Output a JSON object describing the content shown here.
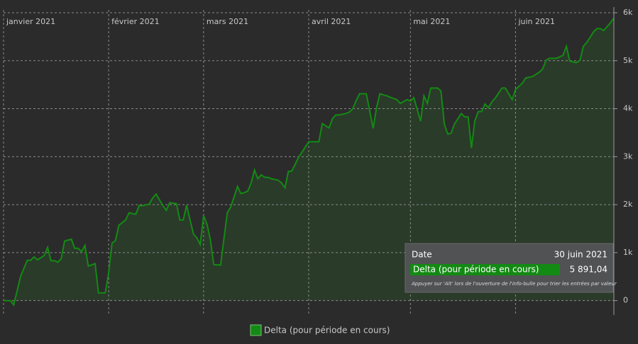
{
  "chart_data": {
    "type": "area",
    "x": [
      "2021-01-01",
      "2021-01-03",
      "2021-01-04",
      "2021-01-05",
      "2021-01-06",
      "2021-01-08",
      "2021-01-09",
      "2021-01-10",
      "2021-01-11",
      "2021-01-13",
      "2021-01-14",
      "2021-01-15",
      "2021-01-16",
      "2021-01-17",
      "2021-01-18",
      "2021-01-19",
      "2021-01-21",
      "2021-01-22",
      "2021-01-23",
      "2021-01-24",
      "2021-01-25",
      "2021-01-26",
      "2021-01-28",
      "2021-01-29",
      "2021-01-31",
      "2021-02-01",
      "2021-02-02",
      "2021-02-03",
      "2021-02-04",
      "2021-02-06",
      "2021-02-07",
      "2021-02-09",
      "2021-02-10",
      "2021-02-11",
      "2021-02-13",
      "2021-02-14",
      "2021-02-15",
      "2021-02-17",
      "2021-02-18",
      "2021-02-19",
      "2021-02-21",
      "2021-02-22",
      "2021-02-23",
      "2021-02-24",
      "2021-02-25",
      "2021-02-26",
      "2021-02-27",
      "2021-02-28",
      "2021-03-01",
      "2021-03-02",
      "2021-03-03",
      "2021-03-04",
      "2021-03-06",
      "2021-03-08",
      "2021-03-09",
      "2021-03-11",
      "2021-03-12",
      "2021-03-13",
      "2021-03-14",
      "2021-03-15",
      "2021-03-16",
      "2021-03-17",
      "2021-03-18",
      "2021-03-19",
      "2021-03-20",
      "2021-03-21",
      "2021-03-23",
      "2021-03-24",
      "2021-03-25",
      "2021-03-26",
      "2021-03-27",
      "2021-03-28",
      "2021-03-29",
      "2021-03-30",
      "2021-04-01",
      "2021-04-02",
      "2021-04-04",
      "2021-04-05",
      "2021-04-07",
      "2021-04-08",
      "2021-04-09",
      "2021-04-10",
      "2021-04-12",
      "2021-04-13",
      "2021-04-14",
      "2021-04-15",
      "2021-04-16",
      "2021-04-18",
      "2021-04-20",
      "2021-04-21",
      "2021-04-22",
      "2021-04-24",
      "2021-04-25",
      "2021-04-27",
      "2021-04-28",
      "2021-04-30",
      "2021-05-01",
      "2021-05-02",
      "2021-05-04",
      "2021-05-05",
      "2021-05-06",
      "2021-05-07",
      "2021-05-09",
      "2021-05-10",
      "2021-05-11",
      "2021-05-12",
      "2021-05-13",
      "2021-05-14",
      "2021-05-16",
      "2021-05-17",
      "2021-05-18",
      "2021-05-19",
      "2021-05-20",
      "2021-05-21",
      "2021-05-22",
      "2021-05-23",
      "2021-05-24",
      "2021-05-25",
      "2021-05-26",
      "2021-05-28",
      "2021-05-29",
      "2021-05-31",
      "2021-06-01",
      "2021-06-03",
      "2021-06-04",
      "2021-06-06",
      "2021-06-08",
      "2021-06-09",
      "2021-06-10",
      "2021-06-11",
      "2021-06-13",
      "2021-06-15",
      "2021-06-16",
      "2021-06-17",
      "2021-06-19",
      "2021-06-20",
      "2021-06-21",
      "2021-06-22",
      "2021-06-23",
      "2021-06-24",
      "2021-06-25",
      "2021-06-26",
      "2021-06-27",
      "2021-06-29",
      "2021-06-30"
    ],
    "series": [
      {
        "name": "Delta (pour période en cours)",
        "color": "#138a13",
        "fill": "#2a3b2a",
        "values": [
          0,
          0,
          -90,
          200,
          500,
          840,
          840,
          910,
          850,
          940,
          1110,
          830,
          830,
          800,
          870,
          1240,
          1280,
          1090,
          1090,
          1020,
          1150,
          720,
          770,
          160,
          160,
          580,
          1200,
          1250,
          1570,
          1680,
          1830,
          1800,
          1980,
          1980,
          2010,
          2140,
          2220,
          1980,
          1880,
          2040,
          2020,
          1680,
          1680,
          1990,
          1680,
          1390,
          1310,
          1170,
          1770,
          1590,
          1270,
          750,
          740,
          1830,
          1950,
          2380,
          2230,
          2250,
          2280,
          2450,
          2720,
          2540,
          2620,
          2570,
          2570,
          2540,
          2510,
          2450,
          2350,
          2690,
          2700,
          2840,
          2990,
          3090,
          3310,
          3310,
          3310,
          3690,
          3600,
          3790,
          3870,
          3870,
          3900,
          3930,
          4000,
          4170,
          4310,
          4310,
          3590,
          4020,
          4310,
          4270,
          4240,
          4190,
          4110,
          4190,
          4160,
          4230,
          3740,
          4270,
          4110,
          4430,
          4430,
          4370,
          3680,
          3470,
          3490,
          3680,
          3900,
          3830,
          3830,
          3180,
          3750,
          3940,
          3940,
          4100,
          4020,
          4140,
          4220,
          4430,
          4430,
          4190,
          4400,
          4530,
          4640,
          4670,
          4760,
          4830,
          5010,
          5050,
          5050,
          5110,
          5300,
          4990,
          4960,
          5010,
          5300,
          5380,
          5490,
          5600,
          5670,
          5670,
          5630,
          5790,
          5891.04
        ]
      }
    ],
    "xlim": [
      "2021-01-01",
      "2021-06-30"
    ],
    "xticks": [
      {
        "value": "2021-01-01",
        "label": "janvier 2021"
      },
      {
        "value": "2021-02-01",
        "label": "février 2021"
      },
      {
        "value": "2021-03-01",
        "label": "mars 2021"
      },
      {
        "value": "2021-04-01",
        "label": "avril 2021"
      },
      {
        "value": "2021-05-01",
        "label": "mai 2021"
      },
      {
        "value": "2021-06-01",
        "label": "juin 2021"
      }
    ],
    "ylim": [
      -300,
      6000
    ],
    "yticks": [
      0,
      {
        "value": 1000,
        "label": "1k"
      },
      {
        "value": 2000,
        "label": "2k"
      },
      {
        "value": 3000,
        "label": "3k"
      },
      {
        "value": 4000,
        "label": "4k"
      },
      {
        "value": 5000,
        "label": "5k"
      },
      {
        "value": 6000,
        "label": "6k"
      }
    ],
    "grid": true,
    "legend": "bottom",
    "tooltip": {
      "date_label": "Date",
      "date": "30 juin 2021",
      "value": "5 891,04",
      "hint": "Appuyer sur 'Alt' lors de l'ouverture de l'info-bulle pour trier les entrées par valeur"
    }
  }
}
